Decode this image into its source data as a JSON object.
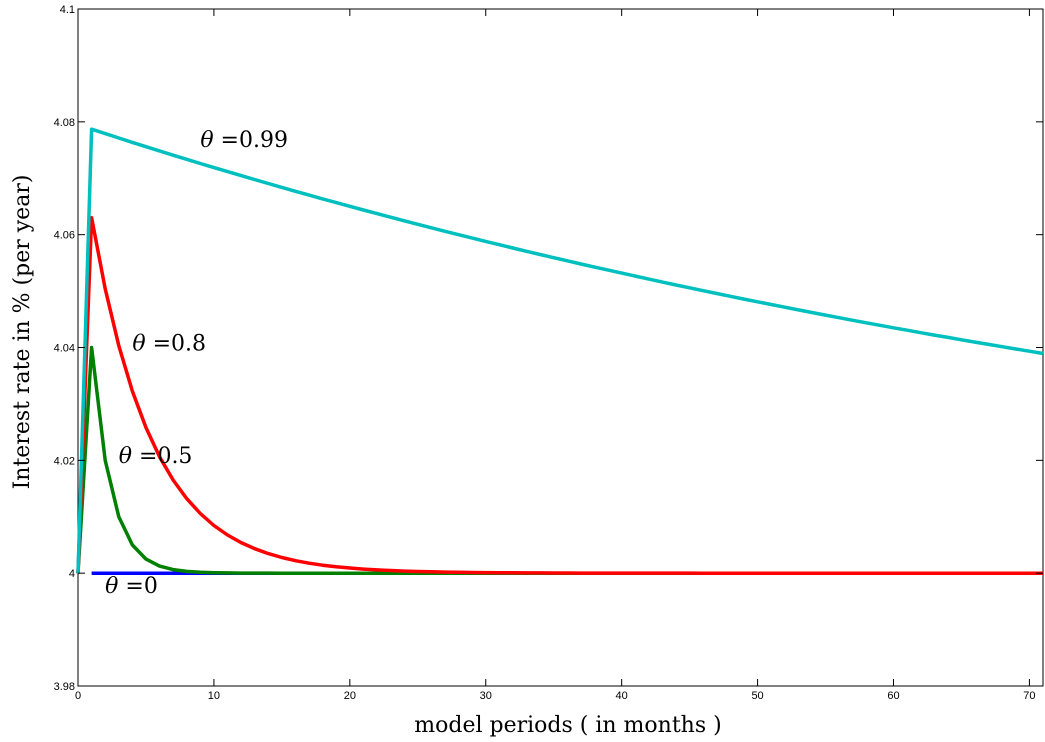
{
  "chart_data": {
    "type": "line",
    "title": "",
    "xlabel": "model periods ( in months )",
    "ylabel": "Interest rate in % (per year)",
    "xlim": [
      0,
      71
    ],
    "ylim": [
      3.98,
      4.1
    ],
    "xticks": [
      0,
      10,
      20,
      30,
      40,
      50,
      60,
      70
    ],
    "yticks": [
      3.98,
      4,
      4.02,
      4.04,
      4.06,
      4.08,
      4.1
    ],
    "ytick_labels": [
      "3.98",
      "4",
      "4.02",
      "4.04",
      "4.06",
      "4.08",
      "4.1"
    ],
    "grid": false,
    "legend": "none",
    "series": [
      {
        "theta": 0,
        "color": "#0000ff",
        "baseline": 4.0,
        "peak": 4.0,
        "decay": 0.0,
        "x_start": 1,
        "x_end": 71
      },
      {
        "theta": 0.5,
        "color": "#008000",
        "baseline": 4.0,
        "peak": 4.04,
        "decay": 0.5,
        "x_start": 0,
        "x_end": 71
      },
      {
        "theta": 0.8,
        "color": "#ff0000",
        "baseline": 4.0,
        "peak": 4.063,
        "decay": 0.8,
        "x_start": 0,
        "x_end": 71
      },
      {
        "theta": 0.99,
        "color": "#00bfbf",
        "baseline": 4.0,
        "peak": 4.0787,
        "decay": 0.99,
        "x_start": 0,
        "x_end": 71
      }
    ],
    "annotations": [
      {
        "greek": "θ",
        "text": " =0.99",
        "x": 9,
        "y": 4.0755
      },
      {
        "greek": "θ",
        "text": " =0.8",
        "x": 4,
        "y": 4.0395
      },
      {
        "greek": "θ",
        "text": " =0.5",
        "x": 3,
        "y": 4.0195
      },
      {
        "greek": "θ",
        "text": " =0",
        "x": 2,
        "y": 3.9965
      }
    ]
  }
}
